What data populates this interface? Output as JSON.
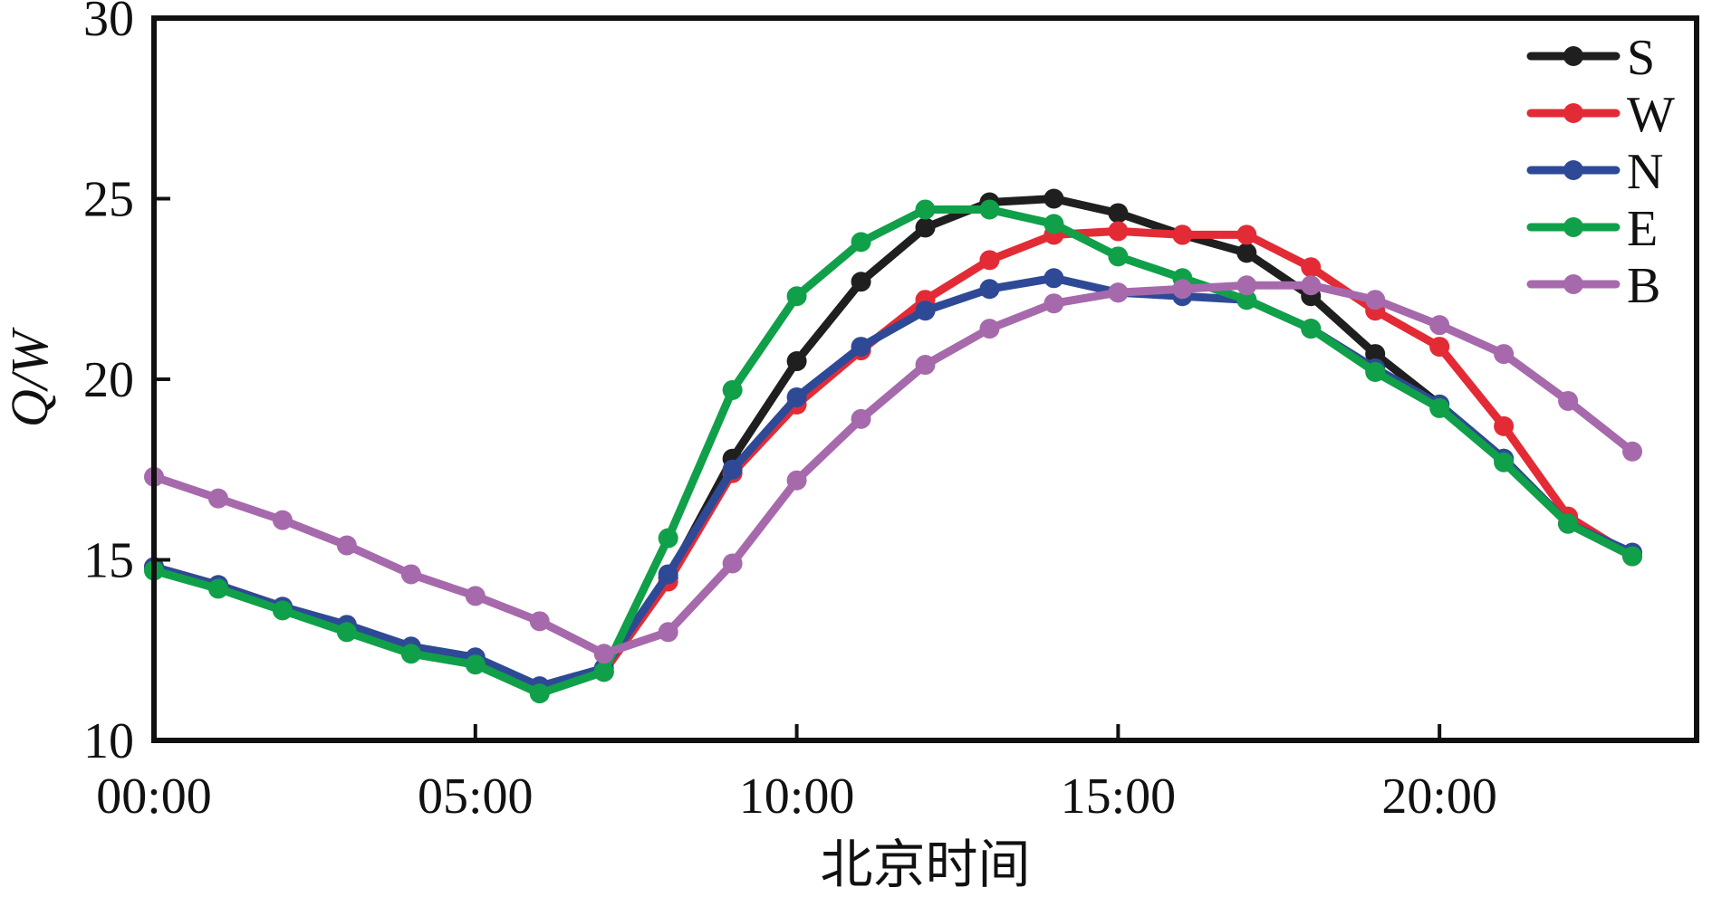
{
  "chart_data": {
    "type": "line",
    "xlabel": "北京时间",
    "ylabel": "Q/W",
    "x": [
      0,
      1,
      2,
      3,
      4,
      5,
      6,
      7,
      8,
      9,
      10,
      11,
      12,
      13,
      14,
      15,
      16,
      17,
      18,
      19,
      20,
      21,
      22,
      23
    ],
    "xlim": [
      0,
      24
    ],
    "ylim": [
      10,
      30
    ],
    "xticks": [
      0,
      5,
      10,
      15,
      20
    ],
    "xtick_labels": [
      "00:00",
      "05:00",
      "10:00",
      "15:00",
      "20:00"
    ],
    "yticks": [
      10,
      15,
      20,
      25,
      30
    ],
    "ytick_labels": [
      "10",
      "15",
      "20",
      "25",
      "30"
    ],
    "grid": false,
    "legend_position": "top-right",
    "series": [
      {
        "name": "S",
        "color": "#1f1f1f",
        "values": [
          14.8,
          14.3,
          13.7,
          13.1,
          12.5,
          12.2,
          11.4,
          11.9,
          14.5,
          17.8,
          20.5,
          22.7,
          24.2,
          24.9,
          25.0,
          24.6,
          24.0,
          23.5,
          22.3,
          20.7,
          19.3,
          17.8,
          16.0,
          15.1
        ]
      },
      {
        "name": "W",
        "color": "#e32b36",
        "values": [
          14.8,
          14.3,
          13.7,
          13.1,
          12.5,
          12.2,
          11.4,
          11.9,
          14.4,
          17.4,
          19.3,
          20.8,
          22.2,
          23.3,
          24.0,
          24.1,
          24.0,
          24.0,
          23.1,
          21.9,
          20.9,
          18.7,
          16.2,
          15.1
        ]
      },
      {
        "name": "N",
        "color": "#2e4a96",
        "values": [
          14.8,
          14.3,
          13.7,
          13.2,
          12.6,
          12.3,
          11.5,
          12.0,
          14.6,
          17.5,
          19.5,
          20.9,
          21.9,
          22.5,
          22.8,
          22.4,
          22.3,
          22.2,
          21.4,
          20.3,
          19.3,
          17.8,
          16.0,
          15.2
        ]
      },
      {
        "name": "E",
        "color": "#10a049",
        "values": [
          14.7,
          14.2,
          13.6,
          13.0,
          12.4,
          12.1,
          11.3,
          11.9,
          15.6,
          19.7,
          22.3,
          23.8,
          24.7,
          24.7,
          24.3,
          23.4,
          22.8,
          22.2,
          21.4,
          20.2,
          19.2,
          17.7,
          16.0,
          15.1
        ]
      },
      {
        "name": "B",
        "color": "#a66aac",
        "values": [
          17.3,
          16.7,
          16.1,
          15.4,
          14.6,
          14.0,
          13.3,
          12.4,
          13.0,
          14.9,
          17.2,
          18.9,
          20.4,
          21.4,
          22.1,
          22.4,
          22.5,
          22.6,
          22.6,
          22.2,
          21.5,
          20.7,
          19.4,
          18.0
        ]
      }
    ]
  }
}
